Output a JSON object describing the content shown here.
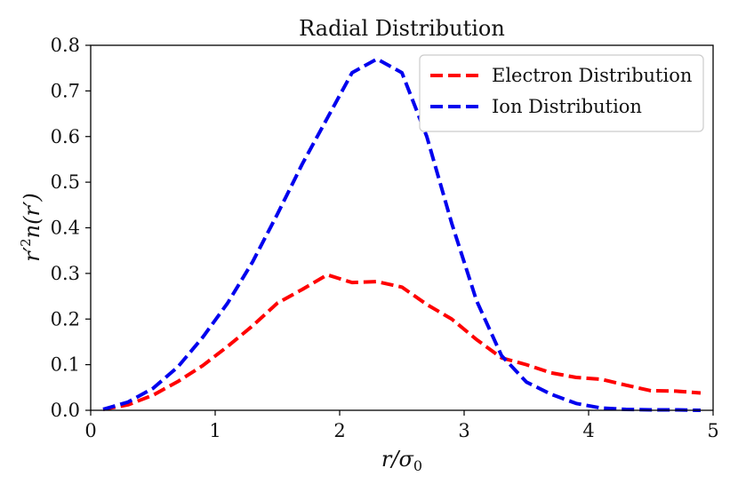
{
  "chart_data": {
    "type": "line",
    "title": "Radial Distribution",
    "xlabel": "r/σ0",
    "ylabel": "r'²n(r')",
    "xlim": [
      0,
      5
    ],
    "ylim": [
      0,
      0.8
    ],
    "xticks": [
      0,
      1,
      2,
      3,
      4,
      5
    ],
    "xtick_labels": [
      "0",
      "1",
      "2",
      "3",
      "4",
      "5"
    ],
    "yticks": [
      0.0,
      0.1,
      0.2,
      0.3,
      0.4,
      0.5,
      0.6,
      0.7,
      0.8
    ],
    "ytick_labels": [
      "0.0",
      "0.1",
      "0.2",
      "0.3",
      "0.4",
      "0.5",
      "0.6",
      "0.7",
      "0.8"
    ],
    "grid": false,
    "legend_position": "top-right",
    "series": [
      {
        "name": "Electron Distribution",
        "color": "#ff0000",
        "style": "dashed",
        "x": [
          0.1,
          0.3,
          0.5,
          0.7,
          0.9,
          1.1,
          1.3,
          1.5,
          1.7,
          1.9,
          2.1,
          2.3,
          2.5,
          2.7,
          2.9,
          3.1,
          3.3,
          3.5,
          3.7,
          3.9,
          4.1,
          4.3,
          4.5,
          4.7,
          4.9
        ],
        "y": [
          0.002,
          0.012,
          0.033,
          0.063,
          0.098,
          0.14,
          0.185,
          0.235,
          0.265,
          0.297,
          0.28,
          0.282,
          0.27,
          0.232,
          0.2,
          0.155,
          0.115,
          0.1,
          0.082,
          0.072,
          0.068,
          0.055,
          0.043,
          0.042,
          0.038
        ]
      },
      {
        "name": "Ion Distribution",
        "color": "#0000ee",
        "style": "dashed",
        "x": [
          0.1,
          0.3,
          0.5,
          0.7,
          0.9,
          1.1,
          1.3,
          1.5,
          1.7,
          1.9,
          2.1,
          2.3,
          2.5,
          2.7,
          2.9,
          3.1,
          3.3,
          3.5,
          3.7,
          3.9,
          4.1,
          4.3,
          4.5,
          4.7,
          4.9
        ],
        "y": [
          0.002,
          0.018,
          0.048,
          0.095,
          0.16,
          0.235,
          0.325,
          0.43,
          0.54,
          0.64,
          0.74,
          0.77,
          0.74,
          0.6,
          0.41,
          0.24,
          0.12,
          0.062,
          0.035,
          0.015,
          0.005,
          0.002,
          0.001,
          0.001,
          0.0
        ]
      }
    ]
  }
}
